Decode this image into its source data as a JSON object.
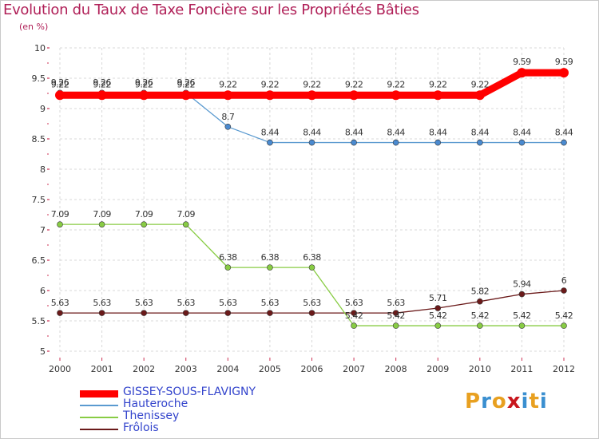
{
  "title": "Evolution du Taux de Taxe Foncière sur les Propriétés Bâties",
  "unit_label": "(en %)",
  "brand": {
    "letters": [
      "P",
      "r",
      "o",
      "x",
      "i",
      "t",
      "i"
    ],
    "colors": [
      "#e8a020",
      "#3a8fd0",
      "#e8a020",
      "#c8161d",
      "#3a8fd0",
      "#e8a020",
      "#3a8fd0"
    ]
  },
  "chart_data": {
    "type": "line",
    "title": "Evolution du Taux de Taxe Foncière sur les Propriétés Bâties",
    "ylabel": "(en %)",
    "xlabel": "",
    "ylim": [
      5,
      10
    ],
    "yticks": [
      5,
      5.5,
      6,
      6.5,
      7,
      7.5,
      8,
      8.5,
      9,
      9.5,
      10
    ],
    "x": [
      "2000",
      "2001",
      "2002",
      "2003",
      "2004",
      "2005",
      "2006",
      "2007",
      "2008",
      "2009",
      "2010",
      "2011",
      "2012"
    ],
    "series": [
      {
        "name": "Frôlois",
        "color": "#6b1a1a",
        "marker": "#6b1a1a",
        "values": [
          5.63,
          5.63,
          5.63,
          5.63,
          5.63,
          5.63,
          5.63,
          5.63,
          5.63,
          5.71,
          5.82,
          5.94,
          6
        ]
      },
      {
        "name": "Thenissey",
        "color": "#88cc44",
        "marker": "#88cc44",
        "values": [
          7.09,
          7.09,
          7.09,
          7.09,
          6.38,
          6.38,
          6.38,
          5.42,
          5.42,
          5.42,
          5.42,
          5.42,
          5.42
        ]
      },
      {
        "name": "Hauteroche",
        "color": "#5a9ad0",
        "marker": "#4a8ad0",
        "values": [
          9.26,
          9.26,
          9.26,
          9.26,
          8.7,
          8.44,
          8.44,
          8.44,
          8.44,
          8.44,
          8.44,
          8.44,
          8.44
        ]
      },
      {
        "name": "GISSEY-SOUS-FLAVIGNY",
        "color": "#ff0000",
        "marker": "#ff0000",
        "values": [
          9.22,
          9.22,
          9.22,
          9.22,
          9.22,
          9.22,
          9.22,
          9.22,
          9.22,
          9.22,
          9.22,
          9.59,
          9.59
        ]
      }
    ],
    "legend": [
      "GISSEY-SOUS-FLAVIGNY",
      "Hauteroche",
      "Thenissey",
      "Frôlois"
    ]
  }
}
